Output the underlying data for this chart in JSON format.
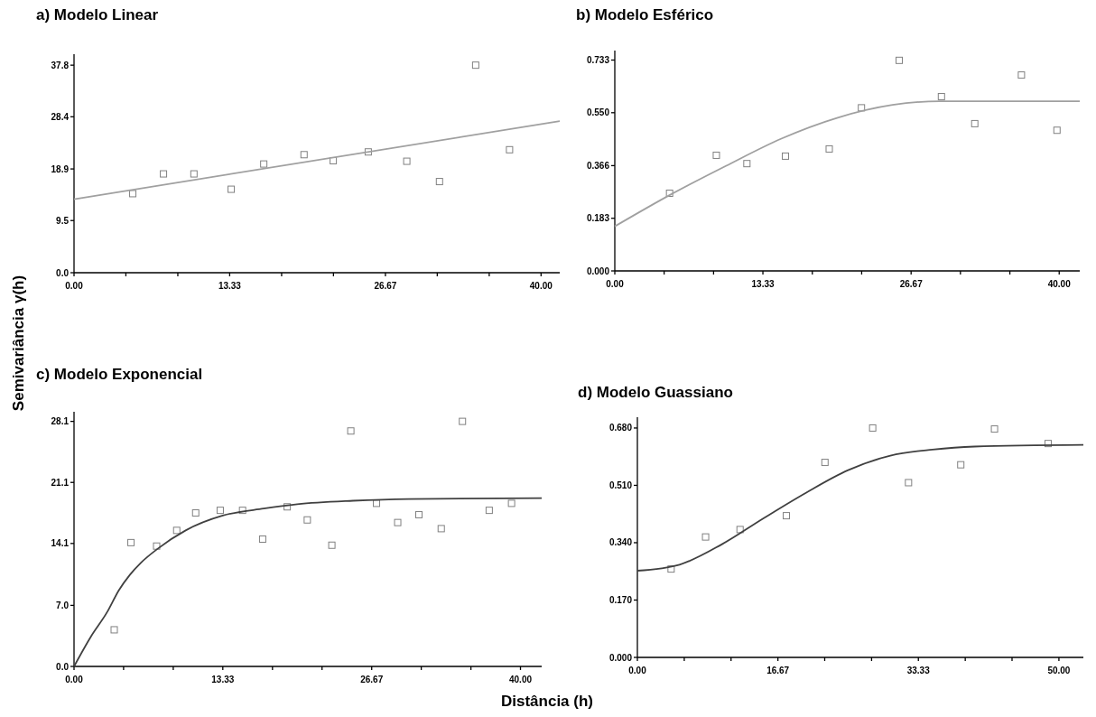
{
  "chart_data": [
    {
      "type": "scatter",
      "title": "a) Modelo Linear",
      "ylabel": "Semivariância γ(h)",
      "xlim": [
        0,
        41.6
      ],
      "ylim": [
        0,
        39.8
      ],
      "xticks": [
        {
          "value": 0,
          "label": "0.00"
        },
        {
          "value": 4.44,
          "label": null
        },
        {
          "value": 8.89,
          "label": null
        },
        13.33,
        {
          "value": 17.78,
          "label": null
        },
        {
          "value": 22.22,
          "label": null
        },
        26.67,
        {
          "value": 31.11,
          "label": null
        },
        {
          "value": 35.56,
          "label": null
        },
        {
          "value": 40,
          "label": "40.00"
        }
      ],
      "yticks": [
        {
          "value": 0,
          "label": "0.0"
        },
        9.5,
        18.9,
        28.4,
        37.8
      ],
      "series": [
        {
          "marker": "square",
          "color": "#808080",
          "x": [
            5.03,
            7.66,
            10.27,
            13.46,
            16.25,
            19.7,
            22.2,
            25.2,
            28.5,
            31.3,
            34.4,
            37.3
          ],
          "values": [
            14.4,
            18.0,
            18.0,
            15.2,
            19.8,
            21.5,
            20.4,
            22.0,
            20.3,
            16.6,
            37.8,
            22.4
          ]
        },
        {
          "type": "line",
          "color": "#a0a0a0",
          "x": [
            0,
            41.6
          ],
          "values": [
            13.4,
            27.6
          ]
        }
      ]
    },
    {
      "type": "scatter",
      "title": "b) Modelo Esférico",
      "xlim": [
        0,
        41.85
      ],
      "ylim": [
        0,
        0.766
      ],
      "xticks": [
        {
          "value": 0,
          "label": "0.00"
        },
        {
          "value": 4.44,
          "label": null
        },
        {
          "value": 8.89,
          "label": null
        },
        13.33,
        {
          "value": 17.78,
          "label": null
        },
        {
          "value": 22.22,
          "label": null
        },
        26.67,
        {
          "value": 31.11,
          "label": null
        },
        {
          "value": 35.56,
          "label": null
        },
        {
          "value": 40,
          "label": "40.00"
        }
      ],
      "yticks": [
        {
          "value": 0,
          "label": "0.000"
        },
        0.183,
        0.366,
        {
          "value": 0.55,
          "label": "0.550"
        },
        0.733
      ],
      "series": [
        {
          "marker": "square",
          "color": "#808080",
          "x": [
            4.93,
            9.14,
            11.89,
            15.36,
            19.3,
            22.2,
            25.6,
            29.4,
            32.4,
            36.6,
            39.8
          ],
          "values": [
            0.27,
            0.402,
            0.373,
            0.399,
            0.424,
            0.567,
            0.732,
            0.606,
            0.512,
            0.681,
            0.489
          ]
        },
        {
          "type": "line",
          "color": "#a0a0a0",
          "x": [
            0,
            5,
            10,
            15,
            20,
            25,
            29.2,
            41.85
          ],
          "values": [
            0.155,
            0.265,
            0.365,
            0.46,
            0.532,
            0.577,
            0.59,
            0.59
          ]
        }
      ]
    },
    {
      "type": "scatter",
      "title": "c) Modelo Exponencial",
      "xlabel": "Distância (h)",
      "xlim": [
        0,
        41.9
      ],
      "ylim": [
        0,
        29.2
      ],
      "xticks": [
        {
          "value": 0,
          "label": "0.00"
        },
        {
          "value": 4.44,
          "label": null
        },
        {
          "value": 8.89,
          "label": null
        },
        13.33,
        {
          "value": 17.78,
          "label": null
        },
        {
          "value": 22.22,
          "label": null
        },
        26.67,
        {
          "value": 31.11,
          "label": null
        },
        {
          "value": 35.56,
          "label": null
        },
        {
          "value": 40,
          "label": "40.00"
        }
      ],
      "yticks": [
        {
          "value": 0,
          "label": "0.0"
        },
        {
          "value": 7,
          "label": "7.0"
        },
        14.1,
        21.1,
        28.1
      ],
      "series": [
        {
          "marker": "square",
          "color": "#808080",
          "x": [
            3.6,
            5.1,
            7.4,
            9.2,
            10.9,
            13.1,
            15.1,
            16.9,
            19.1,
            20.9,
            23.1,
            24.8,
            27.1,
            29.0,
            30.9,
            32.9,
            34.8,
            37.2,
            39.2
          ],
          "values": [
            4.2,
            14.2,
            13.8,
            15.6,
            17.6,
            17.9,
            17.9,
            14.6,
            18.3,
            16.8,
            13.9,
            27.0,
            18.7,
            16.5,
            17.4,
            15.8,
            28.1,
            17.9,
            18.7
          ]
        },
        {
          "type": "line",
          "color": "#404040",
          "x": [
            0,
            1.5,
            3,
            4,
            5,
            6,
            7.5,
            10,
            13.33,
            17,
            20,
            25,
            30,
            41.9
          ],
          "values": [
            0,
            3.4,
            6.3,
            8.7,
            10.5,
            11.9,
            13.5,
            15.6,
            17.3,
            18.1,
            18.6,
            19.0,
            19.2,
            19.3
          ]
        }
      ]
    },
    {
      "type": "scatter",
      "title": "d) Modelo Guassiano",
      "xlim": [
        0,
        52.9
      ],
      "ylim": [
        0,
        0.712
      ],
      "xticks": [
        {
          "value": 0,
          "label": "0.00"
        },
        {
          "value": 5.56,
          "label": null
        },
        {
          "value": 11.11,
          "label": null
        },
        16.67,
        {
          "value": 22.22,
          "label": null
        },
        {
          "value": 27.78,
          "label": null
        },
        33.33,
        {
          "value": 38.89,
          "label": null
        },
        {
          "value": 44.44,
          "label": null
        },
        {
          "value": 50,
          "label": "50.00"
        }
      ],
      "yticks": [
        {
          "value": 0,
          "label": "0.000"
        },
        {
          "value": 0.17,
          "label": "0.170"
        },
        {
          "value": 0.34,
          "label": "0.340"
        },
        {
          "value": 0.51,
          "label": "0.510"
        },
        {
          "value": 0.68,
          "label": "0.680"
        }
      ],
      "series": [
        {
          "marker": "square",
          "color": "#808080",
          "x": [
            4.0,
            8.09,
            12.18,
            17.67,
            22.25,
            27.91,
            32.16,
            38.36,
            42.36,
            48.72
          ],
          "values": [
            0.262,
            0.357,
            0.379,
            0.42,
            0.578,
            0.68,
            0.518,
            0.571,
            0.677,
            0.634
          ]
        },
        {
          "type": "line",
          "color": "#404040",
          "x": [
            0,
            5,
            10,
            15,
            20,
            25,
            30,
            35,
            40,
            52.9
          ],
          "values": [
            0.257,
            0.275,
            0.335,
            0.413,
            0.488,
            0.555,
            0.598,
            0.616,
            0.625,
            0.63
          ]
        }
      ]
    }
  ]
}
